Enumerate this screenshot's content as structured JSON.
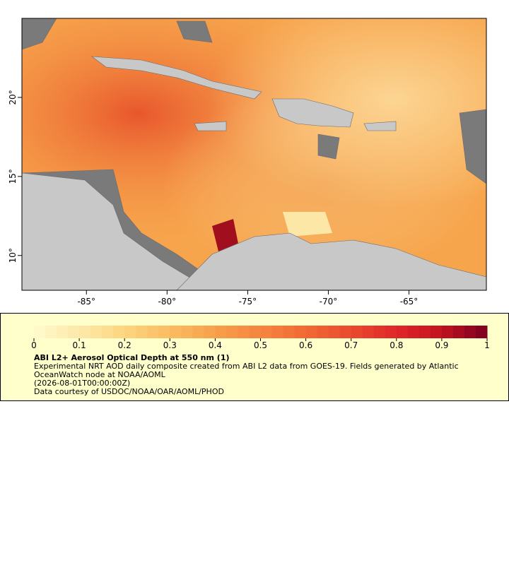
{
  "map": {
    "xlim": [
      -89,
      -60.2
    ],
    "ylim": [
      7.8,
      25
    ],
    "xticks": [
      {
        "value": -85,
        "label": "-85°"
      },
      {
        "value": -80,
        "label": "-80°"
      },
      {
        "value": -75,
        "label": "-75°"
      },
      {
        "value": -70,
        "label": "-70°"
      },
      {
        "value": -65,
        "label": "-65°"
      }
    ],
    "yticks": [
      {
        "value": 10,
        "label": "10°"
      },
      {
        "value": 15,
        "label": "15°"
      },
      {
        "value": 20,
        "label": "20°"
      }
    ]
  },
  "colorbar": {
    "lim": [
      0,
      1
    ],
    "ticks": [
      0,
      0.1,
      0.2,
      0.3,
      0.4,
      0.5,
      0.6,
      0.7,
      0.8,
      0.9,
      1
    ],
    "colors": [
      "#fffacd",
      "#fde9a9",
      "#fdd57f",
      "#fbbc62",
      "#f7a04c",
      "#f5853f",
      "#f26a35",
      "#e94a2d",
      "#e0262a",
      "#c1121f",
      "#7a0020"
    ]
  },
  "legend": {
    "title": "ABI L2+ Aerosol Optical Depth at 550 nm (1)",
    "description": "Experimental NRT AOD daily composite created from ABI L2 data from GOES-19. Fields generated by Atlantic OceanWatch node at NOAA/AOML",
    "time": "(2026-08-01T00:00:00Z)",
    "credit": "Data courtesy of USDOC/NOAA/OAR/AOML/PHOD"
  }
}
